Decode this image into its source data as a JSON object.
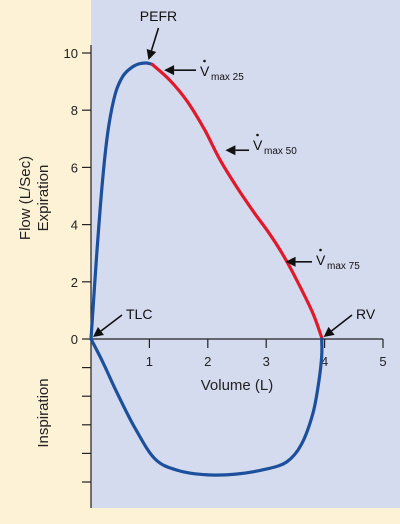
{
  "chart_data": {
    "type": "line",
    "xlabel": "Volume (L)",
    "ylabel_line1": "Flow (L/Sec)",
    "ylabel_line2": "Expiration",
    "ylabel_lower": "Inspiration",
    "xlim": [
      0,
      5
    ],
    "ylim": [
      -6,
      10
    ],
    "x_ticks": [
      0,
      1,
      2,
      3,
      4,
      5
    ],
    "y_ticks": [
      0,
      2,
      4,
      6,
      8,
      10
    ],
    "lower_ticks": [
      -1,
      -2,
      -3,
      -4,
      -5
    ],
    "grid": false,
    "series": [
      {
        "id": "expiration-rise",
        "color": "#1c4f9c",
        "x": [
          0,
          0.1,
          0.2,
          0.3,
          0.42,
          0.55,
          0.7,
          0.82,
          0.95,
          1.05
        ],
        "y": [
          0,
          3.0,
          5.6,
          7.4,
          8.6,
          9.2,
          9.5,
          9.62,
          9.65,
          9.6
        ]
      },
      {
        "id": "expiration-descent",
        "color": "#e0192b",
        "x": [
          1.05,
          1.35,
          1.65,
          1.95,
          2.2,
          2.5,
          2.8,
          3.05,
          3.3,
          3.55,
          3.8,
          3.95
        ],
        "y": [
          9.6,
          9.05,
          8.3,
          7.3,
          6.3,
          5.3,
          4.4,
          3.7,
          2.9,
          1.95,
          0.9,
          0.05
        ]
      },
      {
        "id": "inspiration",
        "color": "#1c4f9c",
        "x": [
          0,
          0.2,
          0.45,
          0.75,
          1.1,
          1.5,
          2.0,
          2.5,
          3.0,
          3.35,
          3.6,
          3.8,
          3.9,
          3.95,
          3.95
        ],
        "y": [
          0,
          -0.8,
          -1.9,
          -3.1,
          -4.2,
          -4.6,
          -4.75,
          -4.72,
          -4.55,
          -4.3,
          -3.7,
          -2.6,
          -1.5,
          -0.6,
          0
        ]
      }
    ],
    "annotations": [
      {
        "id": "pefr",
        "text": "PEFR",
        "sub": "",
        "x": 0.95,
        "y": 9.65
      },
      {
        "id": "vmax25",
        "text": "V",
        "sub": "max 25",
        "x": 1.2,
        "y": 9.4
      },
      {
        "id": "vmax50",
        "text": "V",
        "sub": "max 50",
        "x": 2.25,
        "y": 6.6
      },
      {
        "id": "vmax75",
        "text": "V",
        "sub": "max 75",
        "x": 3.28,
        "y": 2.7
      },
      {
        "id": "tlc",
        "text": "TLC",
        "sub": "",
        "x": 0,
        "y": 0
      },
      {
        "id": "rv",
        "text": "RV",
        "sub": "",
        "x": 3.95,
        "y": 0
      }
    ],
    "colors": {
      "background": "#fdf1d6",
      "plot_area": "#d5dbee",
      "axis": "#222222"
    }
  }
}
